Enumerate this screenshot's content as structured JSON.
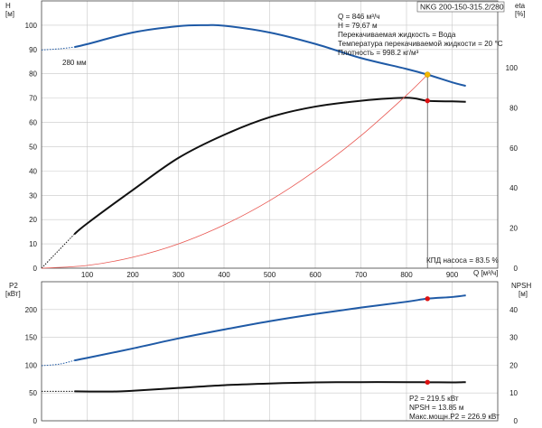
{
  "chart_data": [
    {
      "type": "line",
      "title": "NKG 200-150-315.2/280",
      "diameter_label": "280 мм",
      "xlabel": "Q [м³/ч]",
      "ylabel_left": "H",
      "ylabel_left_unit": "[м]",
      "ylabel_right": "eta",
      "ylabel_right_unit": "[%]",
      "xlim": [
        0,
        1000
      ],
      "ylim_left": [
        0,
        110
      ],
      "ylim_right": [
        0,
        100
      ],
      "grid": true,
      "x_ticks": [
        "100",
        "200",
        "300",
        "400",
        "500",
        "600",
        "700",
        "800",
        "900"
      ],
      "y_left_ticks": [
        "0",
        "10",
        "20",
        "30",
        "40",
        "50",
        "60",
        "70",
        "80",
        "90",
        "100"
      ],
      "y_right_ticks": [
        "0",
        "20",
        "40",
        "60",
        "80",
        "100"
      ],
      "series": [
        {
          "key": "H",
          "color": "#1f5aa6",
          "extrapolated": [
            [
              0,
              89.8
            ],
            [
              40,
              90.3
            ],
            [
              72,
              91.0
            ]
          ],
          "points": [
            [
              72,
              91.0
            ],
            [
              100,
              92.2
            ],
            [
              200,
              97.0
            ],
            [
              300,
              99.6
            ],
            [
              360,
              100.0
            ],
            [
              400,
              99.8
            ],
            [
              500,
              97.0
            ],
            [
              600,
              92.3
            ],
            [
              700,
              86.5
            ],
            [
              800,
              82.0
            ],
            [
              846,
              79.67
            ],
            [
              900,
              76.5
            ],
            [
              930,
              75.0
            ]
          ]
        },
        {
          "key": "eta",
          "axis": "right",
          "color": "#111111",
          "extrapolated": [
            [
              0,
              0
            ],
            [
              36,
              8.5
            ],
            [
              72,
              17.0
            ]
          ],
          "points": [
            [
              72,
              17.0
            ],
            [
              100,
              22.3
            ],
            [
              200,
              39.0
            ],
            [
              300,
              55.0
            ],
            [
              400,
              66.5
            ],
            [
              500,
              75.3
            ],
            [
              600,
              80.6
            ],
            [
              700,
              83.5
            ],
            [
              800,
              85.0
            ],
            [
              846,
              83.5
            ],
            [
              900,
              83.2
            ],
            [
              930,
              83.0
            ]
          ]
        },
        {
          "key": "system_curve",
          "color": "#e8544e",
          "points": [
            [
              0,
              0
            ],
            [
              100,
              1.1
            ],
            [
              200,
              4.5
            ],
            [
              300,
              10.0
            ],
            [
              400,
              17.8
            ],
            [
              500,
              27.8
            ],
            [
              600,
              40.1
            ],
            [
              700,
              54.5
            ],
            [
              800,
              71.2
            ],
            [
              846,
              79.67
            ]
          ]
        }
      ],
      "operating_point": {
        "q": 846,
        "h": 79.67,
        "eta": 83.5,
        "h_marker_color": "#f5b800",
        "eta_marker_color": "#dd1111"
      },
      "info_lines": [
        "Q = 846 м³/ч",
        "H = 79.67 м",
        "Перекачиваемая жидкость = Вода",
        "Температура перекачиваемой жидкости = 20 °C",
        "Плотность = 998.2 кг/м³"
      ],
      "eta_note": "КПД насоса = 83.5 %"
    },
    {
      "type": "line",
      "ylabel_left": "P2",
      "ylabel_left_unit": "[кВт]",
      "ylabel_right": "NPSH",
      "ylabel_right_unit": "[м]",
      "xlim": [
        0,
        1000
      ],
      "ylim_left": [
        0,
        250
      ],
      "ylim_right": [
        0,
        50
      ],
      "grid": true,
      "y_left_ticks": [
        "0",
        "50",
        "100",
        "150",
        "200"
      ],
      "y_right_ticks": [
        "0",
        "10",
        "20",
        "30",
        "40"
      ],
      "series": [
        {
          "key": "P2",
          "color": "#1f5aa6",
          "extrapolated": [
            [
              0,
              99.0
            ],
            [
              40,
              102.0
            ],
            [
              72,
              108.5
            ]
          ],
          "points": [
            [
              72,
              108.5
            ],
            [
              100,
              113.0
            ],
            [
              200,
              130.0
            ],
            [
              300,
              148.0
            ],
            [
              400,
              164.0
            ],
            [
              500,
              179.0
            ],
            [
              600,
              192.0
            ],
            [
              700,
              203.5
            ],
            [
              800,
              214.0
            ],
            [
              846,
              219.5
            ],
            [
              900,
              222.5
            ],
            [
              930,
              225.5
            ]
          ]
        },
        {
          "key": "NPSH",
          "axis": "right",
          "color": "#111111",
          "extrapolated": [
            [
              0,
              10.6
            ],
            [
              40,
              10.6
            ],
            [
              72,
              10.6
            ]
          ],
          "points": [
            [
              72,
              10.6
            ],
            [
              150,
              10.5
            ],
            [
              200,
              10.8
            ],
            [
              300,
              11.8
            ],
            [
              400,
              12.8
            ],
            [
              500,
              13.4
            ],
            [
              600,
              13.8
            ],
            [
              700,
              13.9
            ],
            [
              800,
              13.9
            ],
            [
              846,
              13.85
            ],
            [
              900,
              13.8
            ],
            [
              930,
              13.9
            ]
          ]
        }
      ],
      "operating_point": {
        "q": 846,
        "p2": 219.5,
        "npsh": 13.85,
        "marker_color": "#dd1111"
      },
      "info_lines": [
        "P2 = 219.5 кВт",
        "NPSH = 13.85 м",
        "Макс.мощн.P2 = 226.9 кВт"
      ]
    }
  ]
}
